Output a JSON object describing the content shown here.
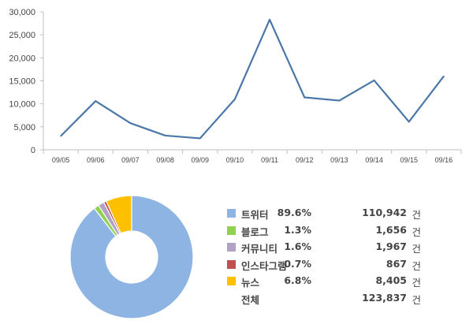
{
  "chart_data": [
    {
      "type": "line",
      "title": "",
      "xlabel": "",
      "ylabel": "",
      "categories": [
        "09/05",
        "09/06",
        "09/07",
        "09/08",
        "09/09",
        "09/10",
        "09/11",
        "09/12",
        "09/13",
        "09/14",
        "09/15",
        "09/16"
      ],
      "series": [
        {
          "values": [
            3000,
            10600,
            5800,
            3100,
            2500,
            11000,
            28300,
            11400,
            10700,
            15100,
            6100,
            16000
          ]
        }
      ],
      "ylim": [
        0,
        30000
      ],
      "yticks": [
        0,
        5000,
        10000,
        15000,
        20000,
        25000,
        30000
      ],
      "ytick_labels": [
        "0",
        "5,000",
        "10,000",
        "15,000",
        "20,000",
        "25,000",
        "30,000"
      ],
      "grid": false,
      "color": "#4a77a8"
    },
    {
      "type": "pie",
      "title": "",
      "donut": true,
      "start": "top, clockwise",
      "legend_position": "right",
      "slices": [
        {
          "label": "트위터",
          "percent": "89.6%",
          "count": "110,942",
          "unit": "건",
          "value": 110942,
          "color": "#8eb4e3"
        },
        {
          "label": "블로그",
          "percent": "1.3%",
          "count": "1,656",
          "unit": "건",
          "value": 1656,
          "color": "#92d050"
        },
        {
          "label": "커뮤니티",
          "percent": "1.6%",
          "count": "1,967",
          "unit": "건",
          "value": 1967,
          "color": "#b3a2c7"
        },
        {
          "label": "인스타그램",
          "percent": "0.7%",
          "count": "867",
          "unit": "건",
          "value": 867,
          "color": "#c0504d"
        },
        {
          "label": "뉴스",
          "percent": "6.8%",
          "count": "8,405",
          "unit": "건",
          "value": 8405,
          "color": "#ffc000"
        }
      ],
      "total": {
        "label": "전체",
        "count": "123,837",
        "unit": "건"
      }
    }
  ]
}
